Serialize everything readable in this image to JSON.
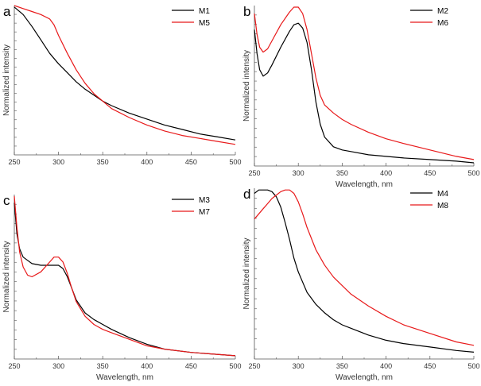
{
  "colors": {
    "black_series": "#000000",
    "red_series": "#e8191a",
    "axis": "#555555"
  },
  "chart_data": [
    {
      "type": "line",
      "panel": "a",
      "xlabel": "",
      "ylabel": "Normalized intensity",
      "xlim": [
        250,
        500
      ],
      "ylim": [
        0,
        1
      ],
      "xticks": [
        "250",
        "300",
        "350",
        "400",
        "450",
        "500"
      ],
      "legend_position": "top-right",
      "series": [
        {
          "name": "M1",
          "color": "black",
          "x": [
            250,
            260,
            270,
            280,
            290,
            300,
            310,
            320,
            330,
            340,
            350,
            360,
            380,
            400,
            420,
            440,
            460,
            480,
            500
          ],
          "y": [
            0.99,
            0.94,
            0.86,
            0.77,
            0.68,
            0.61,
            0.55,
            0.49,
            0.44,
            0.4,
            0.36,
            0.33,
            0.28,
            0.24,
            0.2,
            0.17,
            0.14,
            0.12,
            0.1
          ]
        },
        {
          "name": "M5",
          "color": "red",
          "x": [
            250,
            260,
            270,
            280,
            290,
            295,
            300,
            310,
            320,
            330,
            340,
            350,
            360,
            380,
            400,
            420,
            440,
            460,
            480,
            500
          ],
          "y": [
            1.0,
            0.98,
            0.96,
            0.94,
            0.91,
            0.87,
            0.8,
            0.68,
            0.57,
            0.48,
            0.41,
            0.36,
            0.31,
            0.25,
            0.2,
            0.16,
            0.13,
            0.11,
            0.09,
            0.07
          ]
        }
      ]
    },
    {
      "type": "line",
      "panel": "b",
      "xlabel": "Wavelength, nm",
      "ylabel": "Normalized intensity",
      "xlim": [
        250,
        500
      ],
      "ylim": [
        0,
        1
      ],
      "xticks": [
        "250",
        "300",
        "350",
        "400",
        "450",
        "500"
      ],
      "legend_position": "top-right",
      "series": [
        {
          "name": "M2",
          "color": "black",
          "x": [
            250,
            253,
            256,
            260,
            265,
            270,
            280,
            290,
            295,
            300,
            305,
            310,
            315,
            320,
            325,
            330,
            340,
            350,
            360,
            380,
            400,
            420,
            450,
            480,
            500
          ],
          "y": [
            0.85,
            0.7,
            0.6,
            0.56,
            0.58,
            0.63,
            0.74,
            0.84,
            0.88,
            0.89,
            0.86,
            0.77,
            0.6,
            0.4,
            0.26,
            0.18,
            0.12,
            0.1,
            0.09,
            0.07,
            0.06,
            0.05,
            0.04,
            0.03,
            0.02
          ]
        },
        {
          "name": "M6",
          "color": "red",
          "x": [
            250,
            253,
            256,
            260,
            265,
            270,
            280,
            290,
            295,
            300,
            305,
            310,
            315,
            320,
            325,
            330,
            340,
            350,
            360,
            380,
            400,
            420,
            450,
            480,
            500
          ],
          "y": [
            0.95,
            0.82,
            0.74,
            0.71,
            0.73,
            0.78,
            0.88,
            0.96,
            0.99,
            0.99,
            0.95,
            0.85,
            0.7,
            0.55,
            0.44,
            0.38,
            0.33,
            0.29,
            0.26,
            0.21,
            0.17,
            0.14,
            0.1,
            0.06,
            0.04
          ]
        }
      ]
    },
    {
      "type": "line",
      "panel": "c",
      "xlabel": "Wavelength, nm",
      "ylabel": "Normalized intensity",
      "xlim": [
        250,
        500
      ],
      "ylim": [
        0,
        1
      ],
      "xticks": [
        "250",
        "300",
        "350",
        "400",
        "450",
        "500"
      ],
      "legend_position": "top-right",
      "series": [
        {
          "name": "M3",
          "color": "black",
          "x": [
            250,
            253,
            256,
            260,
            265,
            270,
            280,
            290,
            300,
            305,
            310,
            315,
            320,
            330,
            340,
            350,
            360,
            380,
            400,
            420,
            450,
            500
          ],
          "y": [
            0.95,
            0.76,
            0.67,
            0.62,
            0.6,
            0.58,
            0.57,
            0.57,
            0.57,
            0.55,
            0.5,
            0.43,
            0.36,
            0.28,
            0.24,
            0.21,
            0.18,
            0.13,
            0.09,
            0.06,
            0.04,
            0.02
          ]
        },
        {
          "name": "M7",
          "color": "red",
          "x": [
            250,
            253,
            256,
            260,
            265,
            270,
            280,
            290,
            295,
            300,
            305,
            310,
            315,
            320,
            330,
            340,
            350,
            360,
            380,
            400,
            420,
            450,
            500
          ],
          "y": [
            0.99,
            0.8,
            0.65,
            0.56,
            0.51,
            0.5,
            0.53,
            0.59,
            0.62,
            0.62,
            0.59,
            0.52,
            0.43,
            0.35,
            0.26,
            0.21,
            0.18,
            0.16,
            0.12,
            0.08,
            0.06,
            0.04,
            0.02
          ]
        }
      ]
    },
    {
      "type": "line",
      "panel": "d",
      "xlabel": "Wavelength, nm",
      "ylabel": "Normalized intensity",
      "xlim": [
        250,
        500
      ],
      "ylim": [
        0,
        1
      ],
      "xticks": [
        "250",
        "300",
        "350",
        "400",
        "450",
        "500"
      ],
      "legend_position": "top-right",
      "series": [
        {
          "name": "M4",
          "color": "black",
          "x": [
            250,
            255,
            260,
            265,
            270,
            275,
            280,
            285,
            290,
            295,
            300,
            305,
            310,
            320,
            330,
            340,
            350,
            360,
            380,
            400,
            420,
            450,
            480,
            500
          ],
          "y": [
            0.97,
            0.99,
            0.99,
            0.99,
            0.98,
            0.95,
            0.89,
            0.8,
            0.7,
            0.59,
            0.51,
            0.45,
            0.39,
            0.32,
            0.27,
            0.23,
            0.2,
            0.18,
            0.14,
            0.11,
            0.09,
            0.07,
            0.05,
            0.04
          ]
        },
        {
          "name": "M8",
          "color": "red",
          "x": [
            250,
            255,
            260,
            265,
            270,
            275,
            280,
            285,
            290,
            295,
            300,
            305,
            310,
            320,
            330,
            340,
            350,
            360,
            380,
            400,
            420,
            450,
            480,
            500
          ],
          "y": [
            0.82,
            0.85,
            0.88,
            0.91,
            0.94,
            0.96,
            0.98,
            0.99,
            0.99,
            0.97,
            0.92,
            0.85,
            0.77,
            0.64,
            0.55,
            0.48,
            0.43,
            0.38,
            0.31,
            0.25,
            0.2,
            0.15,
            0.1,
            0.08
          ]
        }
      ]
    }
  ]
}
